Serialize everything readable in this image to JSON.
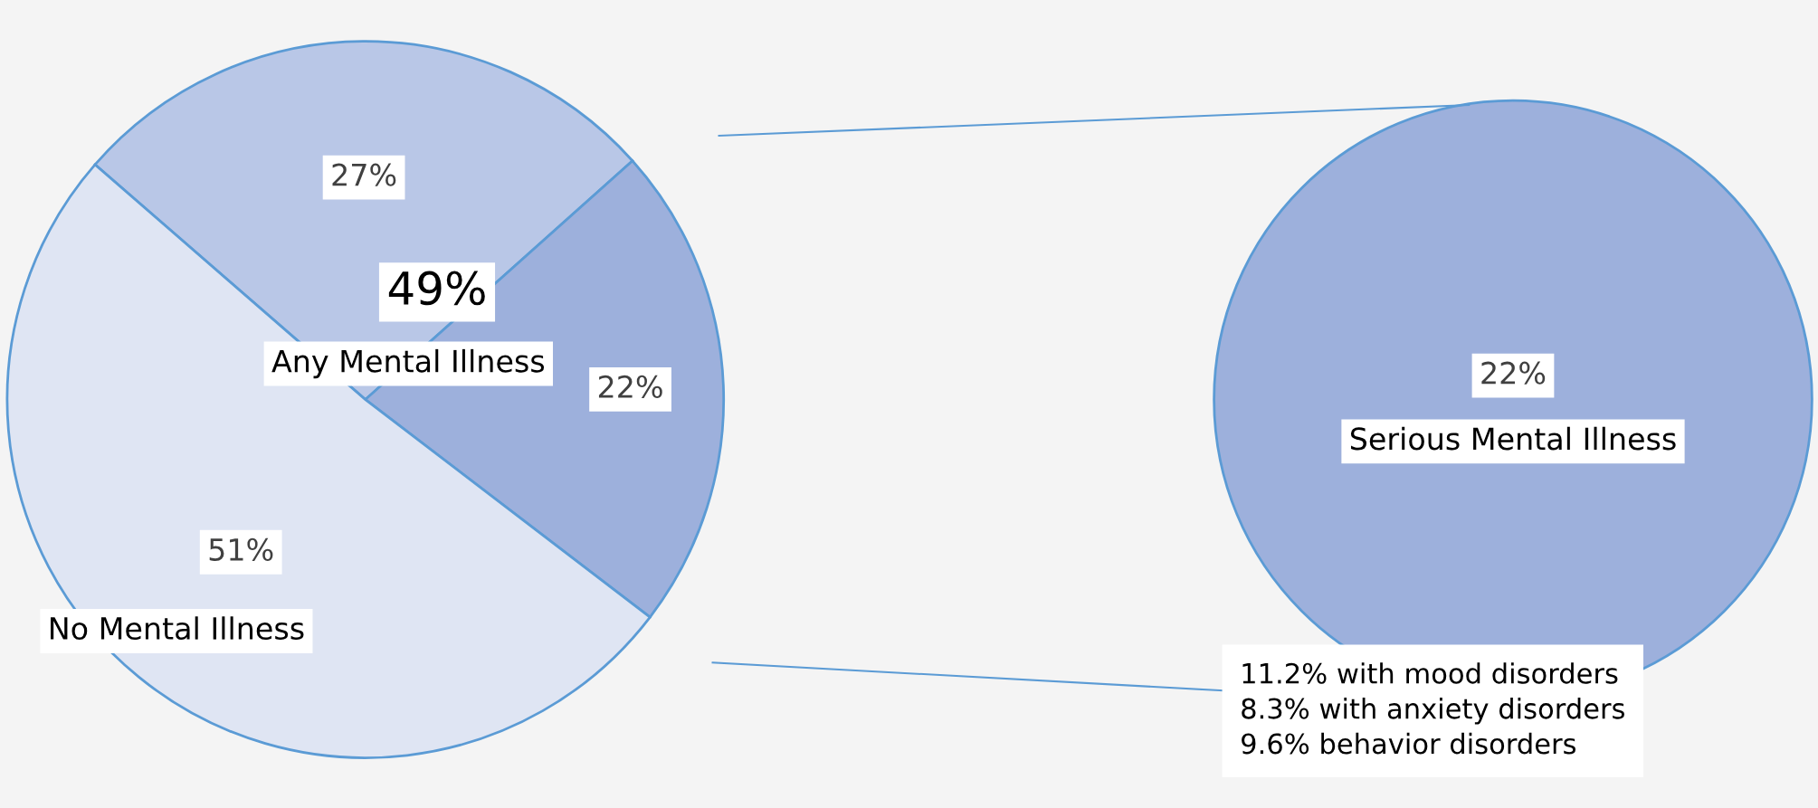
{
  "chart_data": [
    {
      "type": "pie",
      "categories": [
        null,
        null,
        "No Mental Illness"
      ],
      "values": [
        27,
        22,
        51
      ],
      "value_labels": [
        "27%",
        "22%",
        "51%"
      ],
      "colors": [
        "#b9c7e7",
        "#9db0dc",
        "#dfe5f3"
      ],
      "annotations": [
        "49%",
        "Any Mental Illness"
      ]
    },
    {
      "type": "pie",
      "categories": [
        "Serious Mental Illness"
      ],
      "values": [
        22
      ],
      "value_labels": [
        "22%"
      ],
      "colors": [
        "#9db0dc"
      ],
      "annotations": [
        "11.2% with mood disorders\n8.3% with anxiety disorders\n9.6% behavior disorders"
      ]
    }
  ]
}
